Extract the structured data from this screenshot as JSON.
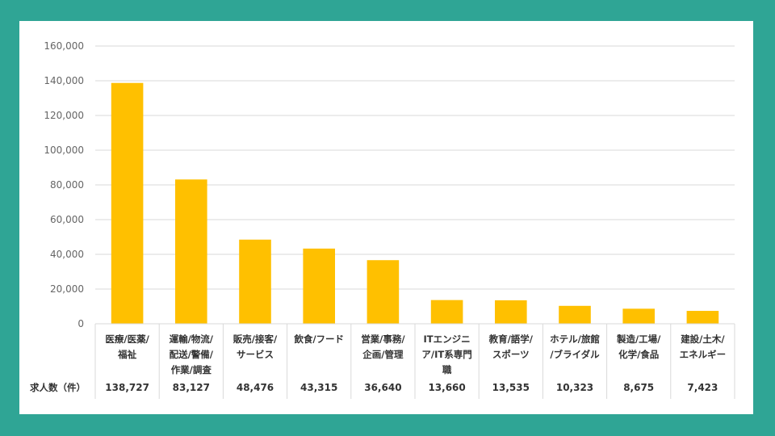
{
  "colors": {
    "background": "#2fa595",
    "bar": "#ffc000",
    "grid": "#d9d9d9"
  },
  "chart_data": {
    "type": "bar",
    "title": "",
    "xlabel": "",
    "ylabel": "",
    "ylim": [
      0,
      160000
    ],
    "yticks": [
      0,
      20000,
      40000,
      60000,
      80000,
      100000,
      120000,
      140000,
      160000
    ],
    "ytick_labels": [
      "0",
      "20,000",
      "40,000",
      "60,000",
      "80,000",
      "100,000",
      "120,000",
      "140,000",
      "160,000"
    ],
    "grid": true,
    "legend": "none",
    "categories": [
      [
        "医療/医薬/",
        "福祉"
      ],
      [
        "運輸/物流/",
        "配送/警備/",
        "作業/調査"
      ],
      [
        "販売/接客/",
        "サービス"
      ],
      [
        "飲食/フード"
      ],
      [
        "営業/事務/",
        "企画/管理"
      ],
      [
        "ITエンジニ",
        "ア/IT系専門",
        "職"
      ],
      [
        "教育/語学/",
        "スポーツ"
      ],
      [
        "ホテル/旅館",
        "/ブライダル"
      ],
      [
        "製造/工場/",
        "化学/食品"
      ],
      [
        "建設/土木/",
        "エネルギー"
      ]
    ],
    "values": [
      138727,
      83127,
      48476,
      43315,
      36640,
      13660,
      13535,
      10323,
      8675,
      7423
    ],
    "table": {
      "row_label": "求人数（件）",
      "values_text": [
        "138,727",
        "83,127",
        "48,476",
        "43,315",
        "36,640",
        "13,660",
        "13,535",
        "10,323",
        "8,675",
        "7,423"
      ]
    }
  }
}
